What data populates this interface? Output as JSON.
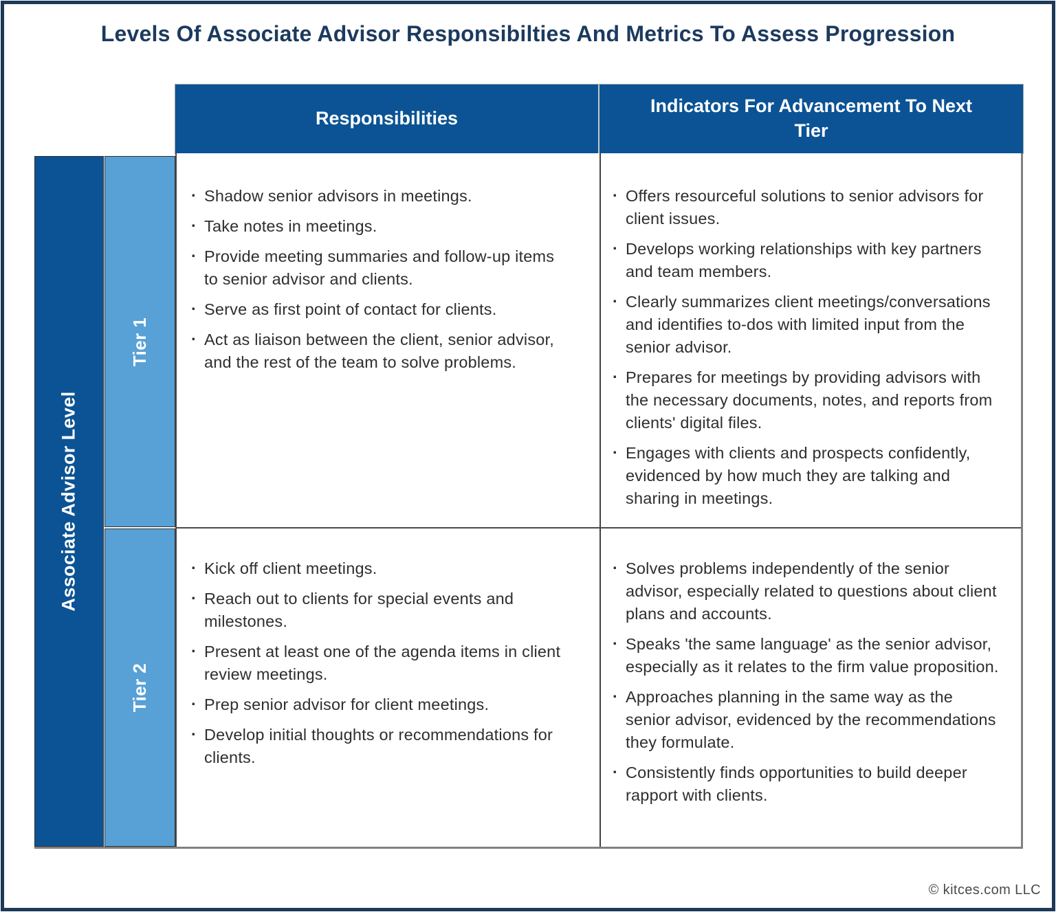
{
  "title": "Levels Of Associate Advisor Responsibilties And Metrics To Assess Progression",
  "footer": {
    "copyright": "© kitces.com LLC"
  },
  "colors": {
    "header_blue": "#0B5394",
    "tier_blue": "#57A1D6",
    "title_navy": "#1C3A5E",
    "frame_navy": "#1C3A57",
    "body_text": "#2E2E2E",
    "divider_gray": "#808080"
  },
  "table": {
    "row_group_label": "Associate Advisor Level",
    "column_headers": {
      "responsibilities": "Responsibilities",
      "indicators": "Indicators For Advancement To Next Tier"
    },
    "rows": [
      {
        "tier_label": "Tier 1",
        "responsibilities": [
          "Shadow senior advisors in meetings.",
          "Take notes in meetings.",
          "Provide meeting summaries and follow-up items to senior advisor and clients.",
          "Serve as first point of contact for clients.",
          "Act as liaison between the client, senior advisor, and the rest of the team to solve problems."
        ],
        "indicators": [
          "Offers resourceful solutions to senior advisors for client issues.",
          "Develops working relationships with key partners and team members.",
          "Clearly summarizes client meetings/conversations and identifies to-dos with limited input from the senior advisor.",
          "Prepares for meetings by providing advisors with the necessary documents, notes, and reports from clients' digital files.",
          "Engages with clients and prospects confidently, evidenced by how much they are talking and sharing in meetings."
        ]
      },
      {
        "tier_label": "Tier 2",
        "responsibilities": [
          "Kick off client meetings.",
          "Reach out to clients for special events and milestones.",
          "Present at least one of the agenda items in client review meetings.",
          "Prep senior advisor for client meetings.",
          "Develop initial thoughts or recommendations for clients."
        ],
        "indicators": [
          "Solves problems independently of the senior advisor, especially related to questions about client plans and accounts.",
          "Speaks 'the same language' as the senior advisor, especially as it relates to the firm value proposition.",
          "Approaches planning in the same way as the senior advisor, evidenced by the recommendations they formulate.",
          "Consistently finds opportunities to build deeper rapport with clients."
        ]
      }
    ]
  }
}
